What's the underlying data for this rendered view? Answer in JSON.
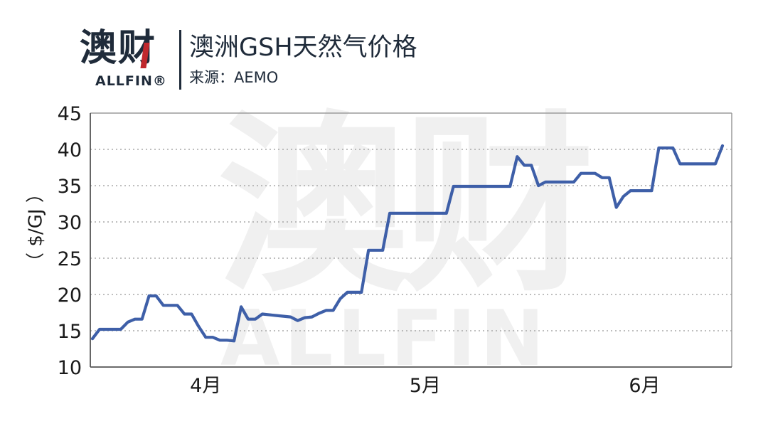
{
  "header": {
    "logo_text": "澳财",
    "logo_sub": "ALLFIN®",
    "title": "澳洲GSH天然气价格",
    "source": "来源：AEMO"
  },
  "watermark": {
    "cn": "澳财",
    "en": "ALLFIN"
  },
  "colors": {
    "line": "#3e5fa8",
    "axis": "#9a9a9a",
    "grid": "#a8a8a8",
    "text": "#1a1a1a",
    "logo": "#1f2b3a",
    "logo_accent": "#c0282d"
  },
  "chart_data": {
    "type": "line",
    "title": "澳洲GSH天然气价格",
    "ylabel": "（ $/GJ ）",
    "xlabel": "",
    "ylim": [
      10,
      45
    ],
    "yticks": [
      10,
      15,
      20,
      25,
      30,
      35,
      40,
      45
    ],
    "grid": "horizontal-dotted",
    "x_ticks": [
      {
        "label": "4月",
        "x": 17
      },
      {
        "label": "5月",
        "x": 48
      },
      {
        "label": "6月",
        "x": 79
      }
    ],
    "xlim": [
      1,
      93
    ],
    "series": [
      {
        "values": [
          [
            1,
            13.9
          ],
          [
            2,
            15.2
          ],
          [
            3,
            15.2
          ],
          [
            4,
            15.2
          ],
          [
            5,
            15.2
          ],
          [
            6,
            16.2
          ],
          [
            7,
            16.6
          ],
          [
            8,
            16.6
          ],
          [
            9,
            19.8
          ],
          [
            10,
            19.8
          ],
          [
            11,
            18.5
          ],
          [
            12,
            18.5
          ],
          [
            13,
            18.5
          ],
          [
            14,
            17.3
          ],
          [
            15,
            17.3
          ],
          [
            16,
            15.6
          ],
          [
            17,
            14.1
          ],
          [
            18,
            14.1
          ],
          [
            19,
            13.7
          ],
          [
            20,
            13.7
          ],
          [
            21,
            13.6
          ],
          [
            22,
            18.3
          ],
          [
            23,
            16.6
          ],
          [
            24,
            16.6
          ],
          [
            25,
            17.3
          ],
          [
            26,
            17.2
          ],
          [
            27,
            17.1
          ],
          [
            28,
            17.0
          ],
          [
            29,
            16.9
          ],
          [
            30,
            16.4
          ],
          [
            31,
            16.8
          ],
          [
            32,
            16.9
          ],
          [
            33,
            17.4
          ],
          [
            34,
            17.8
          ],
          [
            35,
            17.8
          ],
          [
            36,
            19.4
          ],
          [
            37,
            20.3
          ],
          [
            38,
            20.3
          ],
          [
            39,
            20.3
          ],
          [
            40,
            26.1
          ],
          [
            41,
            26.1
          ],
          [
            42,
            26.1
          ],
          [
            43,
            31.2
          ],
          [
            44,
            31.2
          ],
          [
            45,
            31.2
          ],
          [
            46,
            31.2
          ],
          [
            47,
            31.2
          ],
          [
            48,
            31.2
          ],
          [
            49,
            31.2
          ],
          [
            50,
            31.2
          ],
          [
            51,
            31.2
          ],
          [
            52,
            34.9
          ],
          [
            53,
            34.9
          ],
          [
            54,
            34.9
          ],
          [
            55,
            34.9
          ],
          [
            56,
            34.9
          ],
          [
            57,
            34.9
          ],
          [
            58,
            34.9
          ],
          [
            59,
            34.9
          ],
          [
            60,
            34.9
          ],
          [
            61,
            39.0
          ],
          [
            62,
            37.8
          ],
          [
            63,
            37.8
          ],
          [
            64,
            35.0
          ],
          [
            65,
            35.5
          ],
          [
            66,
            35.5
          ],
          [
            67,
            35.5
          ],
          [
            68,
            35.5
          ],
          [
            69,
            35.5
          ],
          [
            70,
            36.7
          ],
          [
            71,
            36.7
          ],
          [
            72,
            36.7
          ],
          [
            73,
            36.1
          ],
          [
            74,
            36.1
          ],
          [
            75,
            32.0
          ],
          [
            76,
            33.5
          ],
          [
            77,
            34.3
          ],
          [
            78,
            34.3
          ],
          [
            79,
            34.3
          ],
          [
            80,
            34.3
          ],
          [
            81,
            40.2
          ],
          [
            82,
            40.2
          ],
          [
            83,
            40.2
          ],
          [
            84,
            38.0
          ],
          [
            85,
            38.0
          ],
          [
            86,
            38.0
          ],
          [
            87,
            38.0
          ],
          [
            88,
            38.0
          ],
          [
            89,
            38.0
          ],
          [
            90,
            40.5
          ]
        ]
      }
    ]
  }
}
